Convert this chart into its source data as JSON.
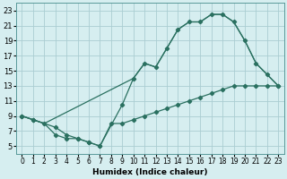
{
  "xlabel": "Humidex (Indice chaleur)",
  "bg_color": "#d6eef0",
  "grid_color": "#aacdd2",
  "line_color": "#2a7060",
  "xlim": [
    -0.5,
    23.5
  ],
  "ylim": [
    4,
    24
  ],
  "xticks": [
    0,
    1,
    2,
    3,
    4,
    5,
    6,
    7,
    8,
    9,
    10,
    11,
    12,
    13,
    14,
    15,
    16,
    17,
    18,
    19,
    20,
    21,
    22,
    23
  ],
  "yticks": [
    5,
    7,
    9,
    11,
    13,
    15,
    17,
    19,
    21,
    23
  ],
  "curve1_x": [
    0,
    1,
    2,
    3,
    4,
    5,
    6,
    7,
    9,
    10,
    11,
    12,
    13,
    14,
    15,
    16,
    17,
    18,
    19,
    20,
    21,
    22,
    23
  ],
  "curve1_y": [
    9,
    8.5,
    8,
    6.5,
    6,
    6,
    5.5,
    5,
    10.5,
    14,
    16,
    15.5,
    18,
    20.5,
    21.5,
    21.5,
    22.5,
    22.5,
    21.5,
    19,
    16,
    14.5,
    13
  ],
  "curve2_x": [
    0,
    1,
    3,
    4,
    5,
    6,
    7,
    8,
    9,
    10,
    11,
    12,
    13,
    14,
    15,
    16,
    17,
    18,
    19,
    20,
    21,
    22,
    23
  ],
  "curve2_y": [
    9,
    8.5,
    7.5,
    6.5,
    6,
    5.5,
    5,
    8.0,
    8.0,
    8.5,
    9.0,
    9.5,
    10.0,
    10.5,
    11.0,
    11.5,
    12.0,
    12.5,
    13.0,
    13.0,
    13.0,
    13.0,
    13.0
  ],
  "curve3_x": [
    0,
    2,
    10,
    11,
    12,
    13,
    14,
    15,
    16,
    17,
    18,
    19,
    20,
    21,
    22,
    23
  ],
  "curve3_y": [
    9,
    8.0,
    14,
    16,
    15.5,
    18,
    20.5,
    21.5,
    21.5,
    22.5,
    22.5,
    21.5,
    19,
    16,
    14.5,
    13
  ]
}
